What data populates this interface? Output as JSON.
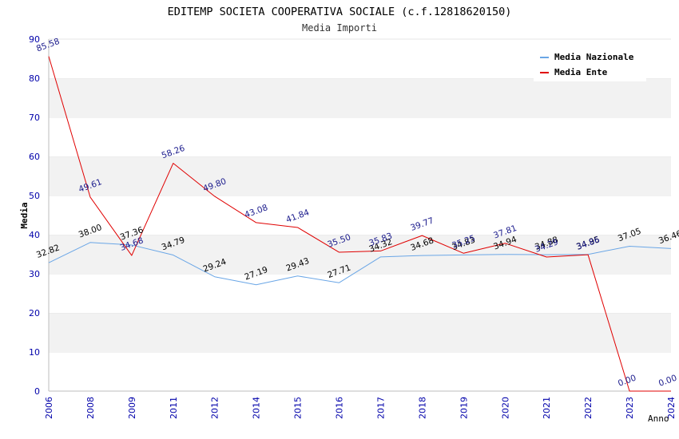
{
  "chart_data": {
    "type": "line",
    "title": "EDITEMP SOCIETA COOPERATIVA SOCIALE (c.f.12818620150)",
    "subtitle": "Media Importi",
    "xlabel": "Anno",
    "ylabel": "Media",
    "ylim": [
      0,
      90
    ],
    "yticks": [
      "0",
      "10",
      "20",
      "30",
      "40",
      "50",
      "60",
      "70",
      "80",
      "90"
    ],
    "categories": [
      "2006",
      "2008",
      "2009",
      "2011",
      "2012",
      "2014",
      "2015",
      "2016",
      "2017",
      "2018",
      "2019",
      "2020",
      "2021",
      "2022",
      "2023",
      "2024"
    ],
    "grid": "horizontal bands",
    "legend_position": "top-right",
    "series": [
      {
        "name": "Media Nazionale",
        "color": "#6aa6e6",
        "label_color": "#000000",
        "values": [
          32.82,
          38.0,
          37.36,
          34.79,
          29.24,
          27.19,
          29.43,
          27.71,
          34.32,
          34.68,
          34.83,
          34.94,
          34.88,
          34.95,
          37.05,
          36.46
        ],
        "labels": [
          "32.82",
          "38.00",
          "37.36",
          "34.79",
          "29.24",
          "27.19",
          "29.43",
          "27.71",
          "34.32",
          "34.68",
          "34.83",
          "34.94",
          "34.88",
          "34.95",
          "37.05",
          "36.46"
        ]
      },
      {
        "name": "Media Ente",
        "color": "#e00000",
        "label_color": "#1a1a8c",
        "values": [
          85.58,
          49.61,
          34.68,
          58.26,
          49.8,
          43.08,
          41.84,
          35.5,
          35.83,
          39.77,
          35.25,
          37.81,
          34.29,
          34.86,
          0.0,
          0.0
        ],
        "labels": [
          "85.58",
          "49.61",
          "34.68",
          "58.26",
          "49.80",
          "43.08",
          "41.84",
          "35.50",
          "35.83",
          "39.77",
          "35.25",
          "37.81",
          "34.29",
          "34.86",
          "0.00",
          "0.00"
        ]
      }
    ]
  }
}
